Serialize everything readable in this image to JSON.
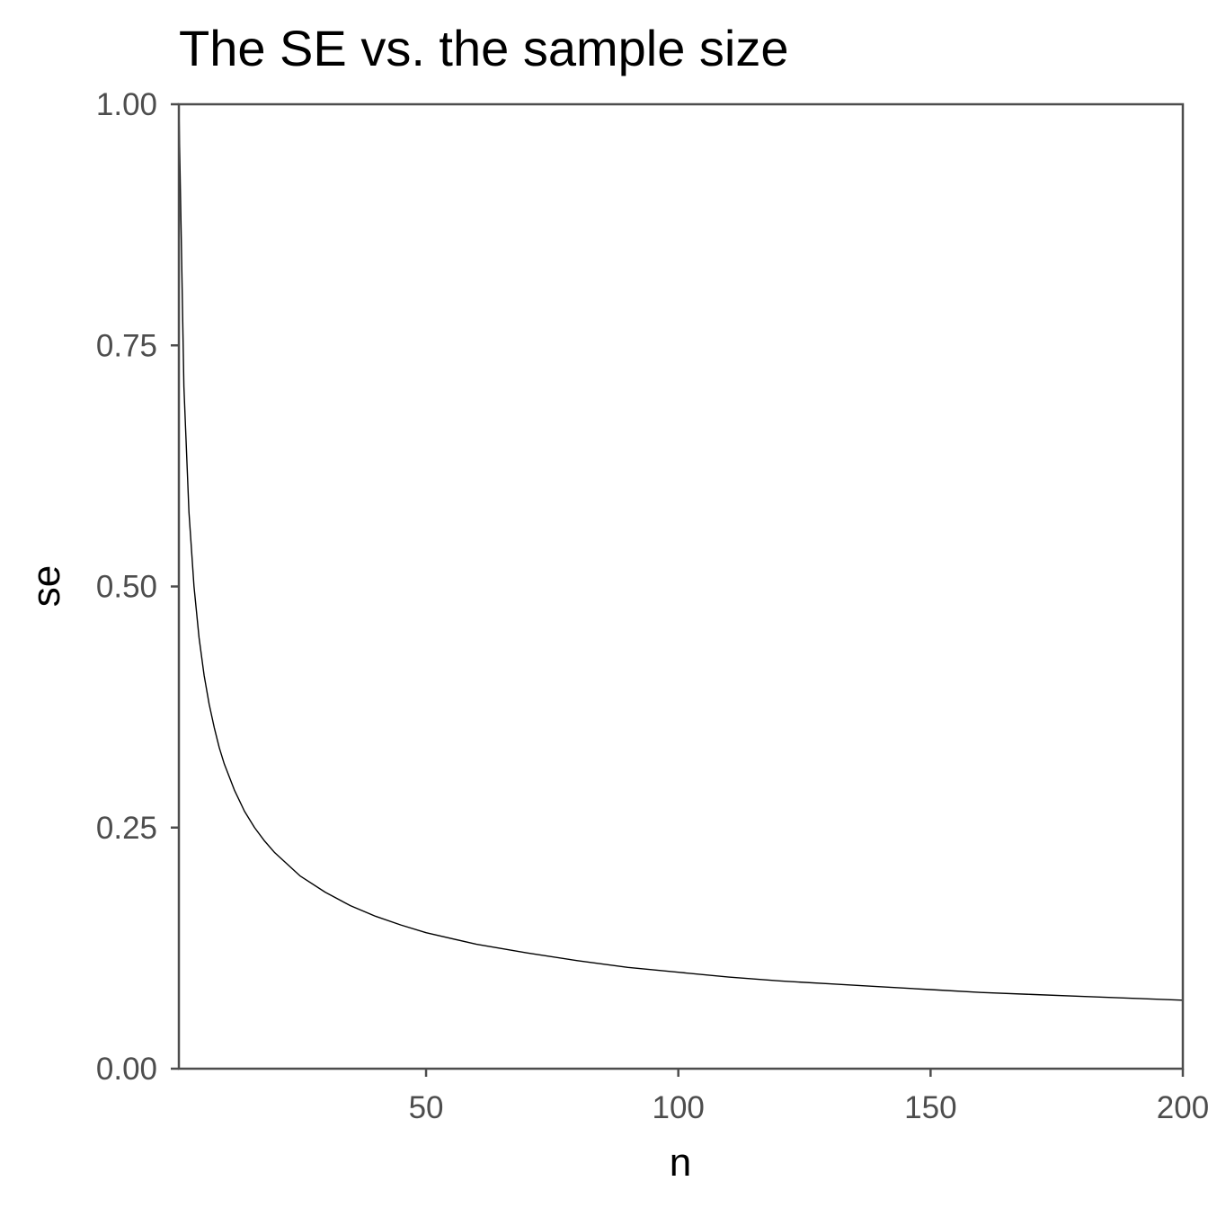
{
  "chart_data": {
    "type": "line",
    "title": "The SE vs. the sample size",
    "xlabel": "n",
    "ylabel": "se",
    "xlim": [
      1,
      200
    ],
    "ylim": [
      0,
      1
    ],
    "grid": false,
    "x_ticks": [
      50,
      100,
      150,
      200
    ],
    "x_tick_labels": [
      "50",
      "100",
      "150",
      "200"
    ],
    "y_ticks": [
      0,
      0.25,
      0.5,
      0.75,
      1
    ],
    "y_tick_labels": [
      "0.00",
      "0.25",
      "0.50",
      "0.75",
      "1.00"
    ],
    "line_color": "#000000",
    "axis_color": "#4d4d4d",
    "series": [
      {
        "x": [
          1,
          2,
          3,
          4,
          5,
          6,
          7,
          8,
          9,
          10,
          12,
          14,
          16,
          18,
          20,
          25,
          30,
          35,
          40,
          45,
          50,
          60,
          70,
          80,
          90,
          100,
          110,
          120,
          130,
          140,
          150,
          160,
          170,
          180,
          190,
          200
        ],
        "values": [
          1.0,
          0.707,
          0.577,
          0.5,
          0.447,
          0.408,
          0.378,
          0.354,
          0.333,
          0.316,
          0.289,
          0.267,
          0.25,
          0.236,
          0.224,
          0.2,
          0.183,
          0.169,
          0.158,
          0.149,
          0.141,
          0.129,
          0.12,
          0.112,
          0.105,
          0.1,
          0.095,
          0.091,
          0.088,
          0.085,
          0.082,
          0.079,
          0.077,
          0.075,
          0.073,
          0.071
        ]
      }
    ]
  }
}
